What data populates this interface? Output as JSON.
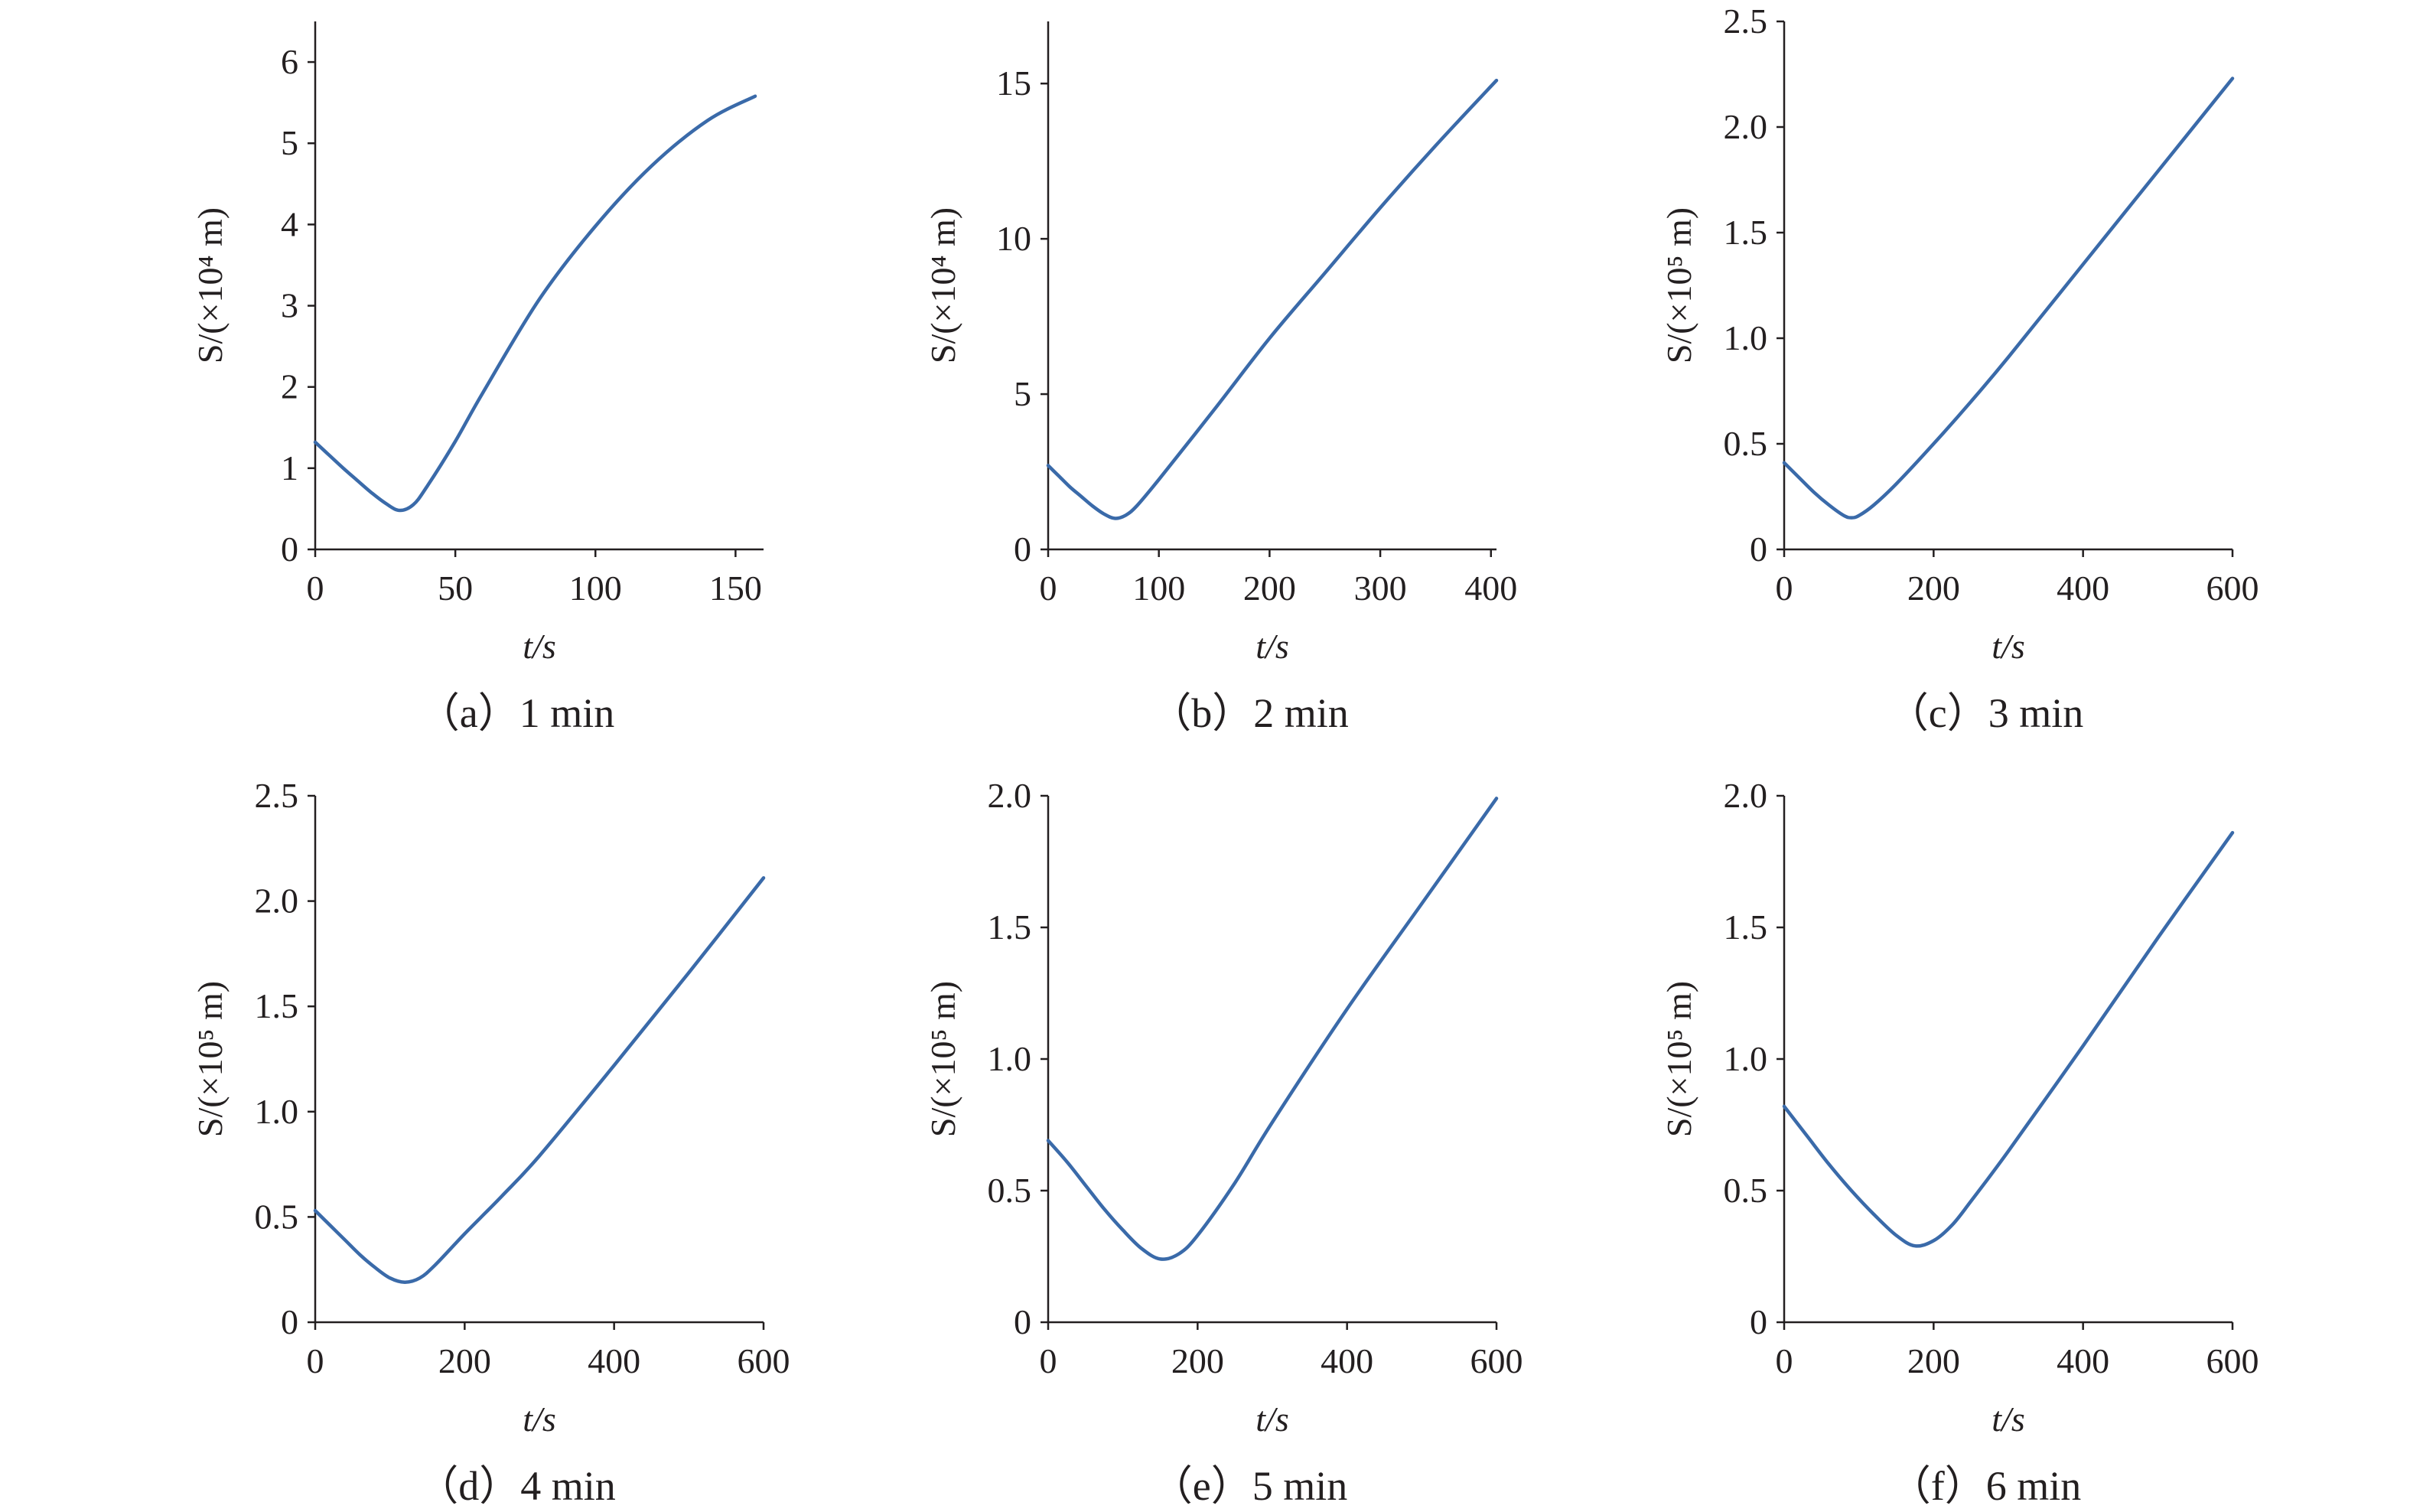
{
  "series_color": "#3a6aa9",
  "chart_data": [
    {
      "type": "line",
      "caption": "（a）1 min",
      "xlabel": "t/s",
      "ylabel": "S/(×10⁴ m)",
      "xlim": [
        0,
        160
      ],
      "ylim": [
        0,
        6.5
      ],
      "xticks": [
        0,
        50,
        100,
        150
      ],
      "xtick_labels": [
        "0",
        "50",
        "100",
        "150"
      ],
      "yticks": [
        0,
        1,
        2,
        3,
        4,
        5,
        6
      ],
      "ytick_labels": [
        "0",
        "1",
        "2",
        "3",
        "4",
        "5",
        "6"
      ],
      "grid": false,
      "legend": "none",
      "series": [
        {
          "x": [
            0,
            5,
            10,
            15,
            20,
            25,
            30,
            35,
            40,
            50,
            60,
            80,
            100,
            120,
            140,
            157
          ],
          "y": [
            1.32,
            1.16,
            1.0,
            0.85,
            0.7,
            0.57,
            0.48,
            0.55,
            0.78,
            1.33,
            1.94,
            3.08,
            3.98,
            4.72,
            5.28,
            5.58
          ]
        }
      ]
    },
    {
      "type": "line",
      "caption": "（b）2 min",
      "xlabel": "t/s",
      "ylabel": "S/(×10⁴ m)",
      "xlim": [
        0,
        405
      ],
      "ylim": [
        0,
        17
      ],
      "xticks": [
        0,
        100,
        200,
        300,
        400
      ],
      "xtick_labels": [
        "0",
        "100",
        "200",
        "300",
        "400"
      ],
      "yticks": [
        0,
        5,
        10,
        15
      ],
      "ytick_labels": [
        "0",
        "5",
        "10",
        "15"
      ],
      "grid": false,
      "legend": "none",
      "series": [
        {
          "x": [
            0,
            10,
            20,
            30,
            40,
            50,
            60,
            70,
            80,
            100,
            150,
            200,
            250,
            300,
            350,
            405
          ],
          "y": [
            2.7,
            2.35,
            2.0,
            1.7,
            1.4,
            1.15,
            1.0,
            1.1,
            1.4,
            2.25,
            4.5,
            6.8,
            8.9,
            11.0,
            13.0,
            15.1
          ]
        }
      ]
    },
    {
      "type": "line",
      "caption": "（c）3 min",
      "xlabel": "t/s",
      "ylabel": "S/(×10⁵ m)",
      "xlim": [
        0,
        600
      ],
      "ylim": [
        0,
        2.5
      ],
      "xticks": [
        0,
        200,
        400,
        600
      ],
      "xtick_labels": [
        "0",
        "200",
        "400",
        "600"
      ],
      "yticks": [
        0,
        0.5,
        1.0,
        1.5,
        2.0,
        2.5
      ],
      "ytick_labels": [
        "0",
        "0.5",
        "1.0",
        "1.5",
        "2.0",
        "2.5"
      ],
      "grid": false,
      "legend": "none",
      "series": [
        {
          "x": [
            0,
            20,
            40,
            60,
            80,
            90,
            100,
            120,
            150,
            200,
            250,
            300,
            400,
            500,
            600
          ],
          "y": [
            0.41,
            0.34,
            0.27,
            0.21,
            0.16,
            0.15,
            0.16,
            0.21,
            0.31,
            0.5,
            0.7,
            0.91,
            1.35,
            1.79,
            2.23
          ]
        }
      ]
    },
    {
      "type": "line",
      "caption": "（d）4 min",
      "xlabel": "t/s",
      "ylabel": "S/(×10⁵ m)",
      "xlim": [
        0,
        600
      ],
      "ylim": [
        0,
        2.5
      ],
      "xticks": [
        0,
        200,
        400,
        600
      ],
      "xtick_labels": [
        "0",
        "200",
        "400",
        "600"
      ],
      "yticks": [
        0,
        0.5,
        1.0,
        1.5,
        2.0,
        2.5
      ],
      "ytick_labels": [
        "0",
        "0.5",
        "1.0",
        "1.5",
        "2.0",
        "2.5"
      ],
      "grid": false,
      "legend": "none",
      "series": [
        {
          "x": [
            0,
            20,
            40,
            60,
            80,
            100,
            120,
            140,
            160,
            200,
            250,
            300,
            400,
            500,
            600
          ],
          "y": [
            0.53,
            0.46,
            0.39,
            0.32,
            0.26,
            0.21,
            0.19,
            0.21,
            0.27,
            0.42,
            0.6,
            0.79,
            1.22,
            1.66,
            2.11
          ]
        }
      ]
    },
    {
      "type": "line",
      "caption": "（e）5 min",
      "xlabel": "t/s",
      "ylabel": "S/(×10⁵ m)",
      "xlim": [
        0,
        600
      ],
      "ylim": [
        0,
        2.0
      ],
      "xticks": [
        0,
        200,
        400,
        600
      ],
      "xtick_labels": [
        "0",
        "200",
        "400",
        "600"
      ],
      "yticks": [
        0,
        0.5,
        1.0,
        1.5,
        2.0
      ],
      "ytick_labels": [
        "0",
        "0.5",
        "1.0",
        "1.5",
        "2.0"
      ],
      "grid": false,
      "legend": "none",
      "series": [
        {
          "x": [
            0,
            25,
            50,
            75,
            100,
            125,
            150,
            175,
            200,
            250,
            300,
            400,
            500,
            600
          ],
          "y": [
            0.69,
            0.61,
            0.52,
            0.43,
            0.35,
            0.28,
            0.24,
            0.26,
            0.33,
            0.53,
            0.76,
            1.19,
            1.59,
            1.99
          ]
        }
      ]
    },
    {
      "type": "line",
      "caption": "（f）6 min",
      "xlabel": "t/s",
      "ylabel": "S/(×10⁵ m)",
      "xlim": [
        0,
        600
      ],
      "ylim": [
        0,
        2.0
      ],
      "xticks": [
        0,
        200,
        400,
        600
      ],
      "xtick_labels": [
        "0",
        "200",
        "400",
        "600"
      ],
      "yticks": [
        0,
        0.5,
        1.0,
        1.5,
        2.0
      ],
      "ytick_labels": [
        "0",
        "0.5",
        "1.0",
        "1.5",
        "2.0"
      ],
      "grid": false,
      "legend": "none",
      "series": [
        {
          "x": [
            0,
            30,
            60,
            90,
            120,
            150,
            175,
            200,
            225,
            250,
            300,
            400,
            500,
            600
          ],
          "y": [
            0.82,
            0.71,
            0.6,
            0.5,
            0.41,
            0.33,
            0.29,
            0.31,
            0.37,
            0.46,
            0.65,
            1.05,
            1.46,
            1.86
          ]
        }
      ]
    }
  ]
}
